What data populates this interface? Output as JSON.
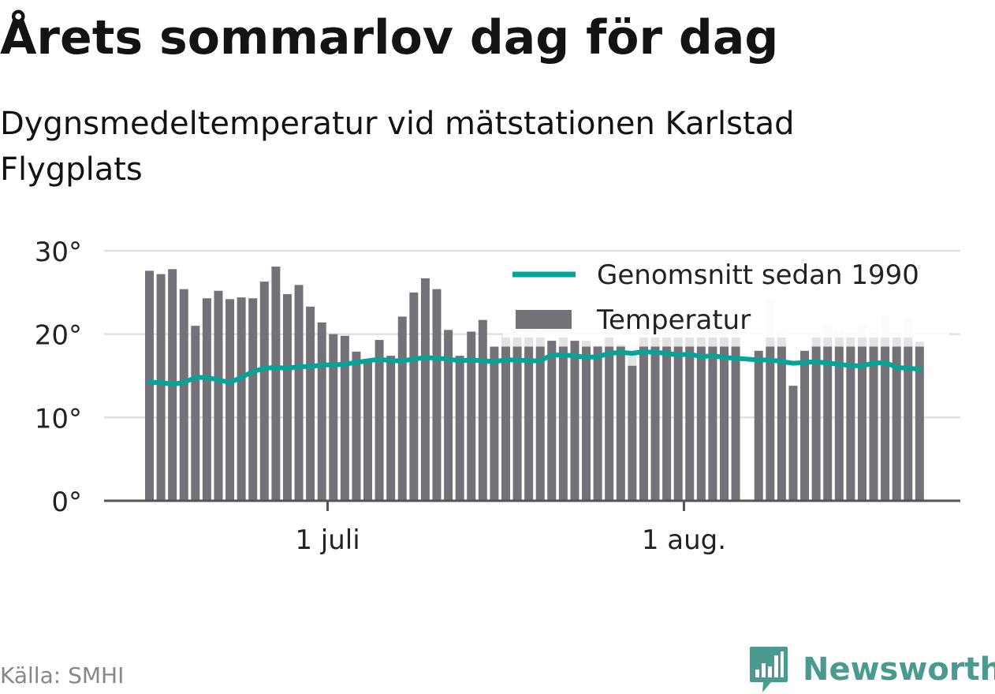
{
  "title": "Årets sommarlov dag för dag",
  "subtitle": "Dygnsmedeltemperatur vid mätstationen Karlstad Flygplats",
  "source": "Källa: SMHI",
  "brand": {
    "name": "Newsworthy",
    "logo_icon": "bar-chart-speech-bubble-icon"
  },
  "colors": {
    "bar": "#747278",
    "bar_background": "#e3e3e3",
    "average_line": "#05a499",
    "grid": "#e1e1e1",
    "axis": "#555555",
    "brand": "#4a9a8f",
    "text": "#131313",
    "muted_text": "#878787"
  },
  "chart_data": {
    "type": "bar",
    "start_date": "2018-06-15",
    "ylim": [
      0,
      30
    ],
    "yticks": [
      {
        "value": 0,
        "label": "0°"
      },
      {
        "value": 10,
        "label": "10°"
      },
      {
        "value": 20,
        "label": "20°"
      },
      {
        "value": 30,
        "label": "30°"
      }
    ],
    "xticks": [
      {
        "date": "2018-07-01",
        "label": "1 juli"
      },
      {
        "date": "2018-08-01",
        "label": "1 aug."
      }
    ],
    "grid": true,
    "legend_position": "top-right",
    "legend": [
      {
        "label": "Genomsnitt sedan 1990",
        "kind": "line"
      },
      {
        "label": "Temperatur",
        "kind": "bar"
      }
    ],
    "series": [
      {
        "name": "Temperatur",
        "type": "bar",
        "values": [
          27.6,
          27.2,
          27.8,
          25.4,
          21.0,
          24.3,
          25.2,
          24.2,
          24.4,
          24.3,
          26.3,
          28.1,
          24.8,
          25.9,
          23.3,
          21.4,
          20.0,
          19.8,
          17.9,
          17.0,
          19.3,
          17.4,
          22.1,
          25.0,
          26.7,
          25.4,
          20.5,
          17.4,
          20.3,
          21.7,
          18.5,
          18.5,
          18.5,
          18.5,
          18.5,
          19.2,
          18.5,
          19.2,
          18.5,
          18.5,
          18.5,
          18.5,
          16.2,
          18.5,
          18.5,
          18.5,
          18.5,
          18.5,
          18.5,
          18.5,
          18.5,
          18.5,
          null,
          18.0,
          18.5,
          18.5,
          13.8,
          18.0,
          18.5,
          18.5,
          18.5,
          18.5,
          18.5,
          18.5,
          18.5,
          18.5,
          18.5,
          18.5
        ]
      },
      {
        "name": "",
        "type": "bar-background",
        "values": [
          null,
          null,
          null,
          null,
          null,
          null,
          null,
          null,
          null,
          null,
          null,
          null,
          null,
          null,
          null,
          null,
          null,
          null,
          null,
          null,
          null,
          null,
          null,
          null,
          null,
          null,
          null,
          null,
          null,
          null,
          null,
          19.8,
          20.6,
          19.9,
          20.2,
          19.0,
          20.3,
          18.0,
          19.2,
          18.6,
          20.1,
          18.7,
          17.6,
          21.0,
          22.0,
          21.6,
          20.5,
          19.7,
          20.2,
          20.8,
          20.5,
          20.5,
          null,
          null,
          24.0,
          20.4,
          null,
          null,
          19.8,
          21.0,
          20.6,
          20.1,
          21.2,
          19.7,
          22.3,
          20.2,
          21.8,
          19.1
        ]
      },
      {
        "name": "Genomsnitt sedan 1990",
        "type": "line",
        "values": [
          14.2,
          14.2,
          14.0,
          14.2,
          14.8,
          14.8,
          14.5,
          14.2,
          14.8,
          15.5,
          15.9,
          16.0,
          15.9,
          16.1,
          16.1,
          16.3,
          16.3,
          16.4,
          16.6,
          16.8,
          17.0,
          16.8,
          16.8,
          17.0,
          17.2,
          17.1,
          17.0,
          16.8,
          16.9,
          16.8,
          16.7,
          16.9,
          16.9,
          16.8,
          16.8,
          17.5,
          17.5,
          17.4,
          17.2,
          17.3,
          17.7,
          17.8,
          17.7,
          17.9,
          17.8,
          17.7,
          17.5,
          17.6,
          17.3,
          17.4,
          17.2,
          17.1,
          17.0,
          16.9,
          16.9,
          16.7,
          16.5,
          16.6,
          16.7,
          16.5,
          16.4,
          16.2,
          16.2,
          16.5,
          16.6,
          16.0,
          15.9,
          15.8
        ]
      }
    ]
  }
}
